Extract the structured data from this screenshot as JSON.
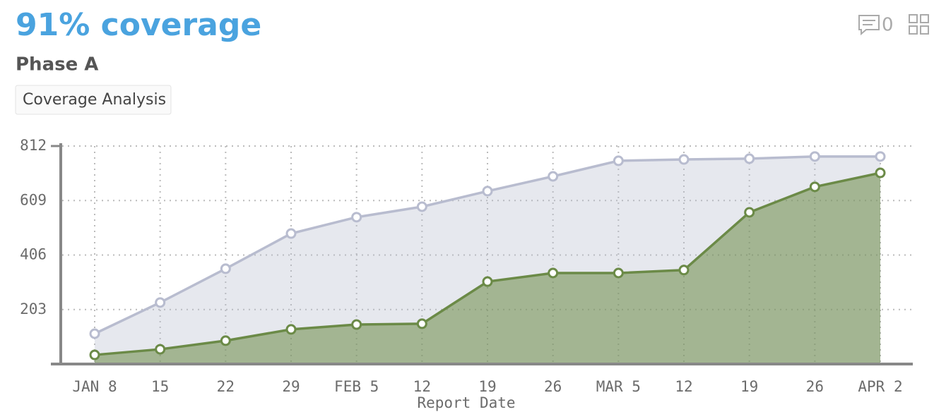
{
  "header": {
    "title": "91% coverage",
    "subtitle": "Phase A",
    "tag": "Coverage Analysis",
    "comment_count": "0"
  },
  "chart_data": {
    "type": "area-line",
    "x_label": "Report Date",
    "categories": [
      "JAN 8",
      "15",
      "22",
      "29",
      "FEB 5",
      "12",
      "19",
      "26",
      "MAR 5",
      "12",
      "19",
      "26",
      "APR 2"
    ],
    "series": [
      {
        "color": "#b8bccf",
        "values": [
          113,
          229,
          355,
          486,
          547,
          586,
          644,
          699,
          757,
          762,
          765,
          773,
          773
        ]
      },
      {
        "color": "#6b8a47",
        "values": [
          34,
          55,
          87,
          129,
          147,
          150,
          307,
          339,
          339,
          350,
          565,
          660,
          712
        ]
      }
    ],
    "ylim": [
      0,
      812
    ],
    "yticks": [
      203,
      406,
      609,
      812
    ],
    "grid": true
  }
}
